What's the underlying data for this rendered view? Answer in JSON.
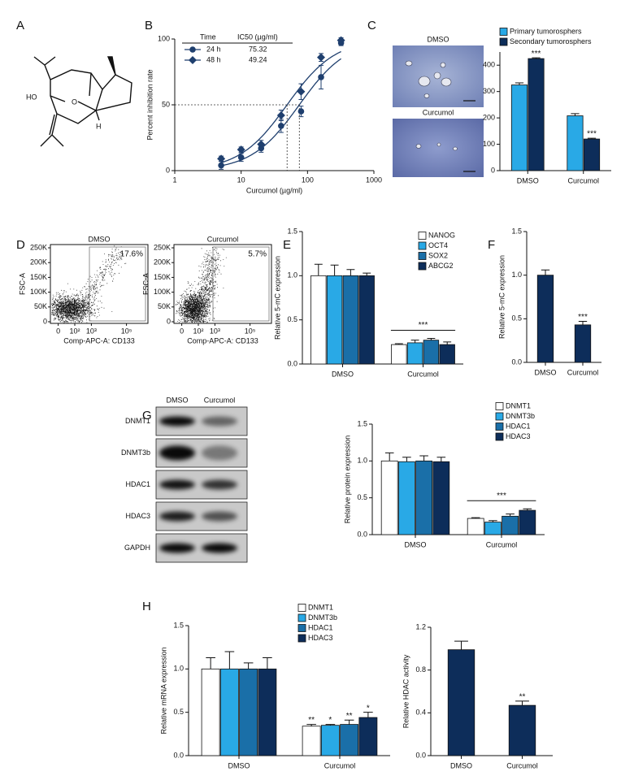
{
  "panel_labels": [
    "A",
    "B",
    "C",
    "D",
    "E",
    "F",
    "G",
    "H"
  ],
  "structure": {
    "labels": [
      "HO",
      "O",
      "H"
    ]
  },
  "micrographs": {
    "labels": [
      "DMSO",
      "Curcumol"
    ]
  },
  "flow_cytometry": {
    "x_label": "Comp-APC-A: CD133",
    "y_label": "FSC-A",
    "y_ticks": [
      "0",
      "50K",
      "100K",
      "150K",
      "200K",
      "250K"
    ],
    "x_ticks": [
      "0",
      "10²",
      "10³",
      "10⁵"
    ],
    "plots": [
      {
        "title": "DMSO",
        "gate": "17.6%"
      },
      {
        "title": "Curcumol",
        "gate": "5.7%"
      }
    ]
  },
  "western_blot": {
    "columns": [
      "DMSO",
      "Curcumol"
    ],
    "rows": [
      "DNMT1",
      "DNMT3b",
      "HDAC1",
      "HDAC3",
      "GAPDH"
    ]
  },
  "chart_data": [
    {
      "type": "line",
      "xlabel": "Curcumol (µg/ml)",
      "ylabel": "Percent inhibition rate",
      "xscale": "log",
      "xlim": [
        1,
        1000
      ],
      "xticks": [
        1,
        10,
        100,
        1000
      ],
      "ylim": [
        0,
        100
      ],
      "yticks": [
        0,
        50,
        100
      ],
      "legend_header": [
        "Time",
        "IC50 (µg/ml)"
      ],
      "color": "#1f3f6e",
      "series": [
        {
          "name": "24 h",
          "marker": "circle",
          "ic50": 75.32,
          "x": [
            5,
            10,
            20,
            40,
            80,
            160,
            320
          ],
          "values": [
            4,
            10,
            17,
            34,
            45,
            71,
            97
          ],
          "errors": [
            3,
            3,
            3,
            5,
            4,
            9,
            2
          ]
        },
        {
          "name": "48 h",
          "marker": "diamond",
          "ic50": 49.24,
          "x": [
            5,
            10,
            20,
            40,
            80,
            160,
            320
          ],
          "values": [
            9,
            16,
            20,
            42,
            60,
            86,
            99
          ],
          "errors": [
            2,
            2,
            3,
            4,
            6,
            3,
            2
          ]
        }
      ]
    },
    {
      "type": "bar",
      "categories": [
        "DMSO",
        "Curcumol"
      ],
      "ylim": [
        0,
        450
      ],
      "yticks": [
        0,
        100,
        200,
        300,
        400
      ],
      "series": [
        {
          "name": "Primary tumorosphers",
          "color": "#29a9e6",
          "values": [
            325,
            208
          ],
          "errors": [
            8,
            8
          ]
        },
        {
          "name": "Secondary tumorosphers",
          "color": "#0d2d5a",
          "values": [
            425,
            120
          ],
          "errors": [
            3,
            3
          ],
          "significance": [
            "***",
            "***"
          ]
        }
      ]
    },
    {
      "type": "bar",
      "ylabel": "Relative 5-mC expression",
      "categories": [
        "DMSO",
        "Curcumol"
      ],
      "ylim": [
        0,
        1.5
      ],
      "yticks": [
        {
          "value": 0,
          "label": "0.0"
        },
        0.5,
        {
          "value": 1,
          "label": "1.0"
        },
        1.5
      ],
      "annotation": "***",
      "series": [
        {
          "name": "NANOG",
          "color": "#ffffff",
          "values": [
            1.0,
            0.22
          ],
          "errors": [
            0.13,
            0.01
          ]
        },
        {
          "name": "OCT4",
          "color": "#29a9e6",
          "values": [
            1.0,
            0.24
          ],
          "errors": [
            0.12,
            0.03
          ]
        },
        {
          "name": "SOX2",
          "color": "#1a6fa8",
          "values": [
            1.0,
            0.27
          ],
          "errors": [
            0.07,
            0.02
          ]
        },
        {
          "name": "ABCG2",
          "color": "#0d2d5a",
          "values": [
            1.0,
            0.22
          ],
          "errors": [
            0.03,
            0.03
          ]
        }
      ]
    },
    {
      "type": "bar",
      "ylabel": "Relative 5-mC expression",
      "categories": [
        "DMSO",
        "Curcumol"
      ],
      "ylim": [
        0,
        1.5
      ],
      "yticks": [
        {
          "value": 0,
          "label": "0.0"
        },
        0.5,
        {
          "value": 1,
          "label": "1.0"
        },
        1.5
      ],
      "color": "#0d2d5a",
      "values": [
        1.0,
        0.43
      ],
      "errors": [
        0.06,
        0.04
      ],
      "significance": [
        null,
        "***"
      ]
    },
    {
      "type": "bar",
      "ylabel": "Relative protein expression",
      "categories": [
        "DMSO",
        "Curcumol"
      ],
      "ylim": [
        0,
        1.5
      ],
      "yticks": [
        {
          "value": 0,
          "label": "0.0"
        },
        0.5,
        {
          "value": 1,
          "label": "1.0"
        },
        1.5
      ],
      "annotation": "***",
      "series": [
        {
          "name": "DNMT1",
          "color": "#ffffff",
          "values": [
            1.0,
            0.22
          ],
          "errors": [
            0.11,
            0.01
          ]
        },
        {
          "name": "DNMT3b",
          "color": "#29a9e6",
          "values": [
            0.99,
            0.17
          ],
          "errors": [
            0.06,
            0.02
          ]
        },
        {
          "name": "HDAC1",
          "color": "#1a6fa8",
          "values": [
            1.0,
            0.25
          ],
          "errors": [
            0.07,
            0.03
          ]
        },
        {
          "name": "HDAC3",
          "color": "#0d2d5a",
          "values": [
            0.99,
            0.33
          ],
          "errors": [
            0.06,
            0.02
          ]
        }
      ]
    },
    {
      "type": "bar",
      "ylabel": "Relative mRNA expression",
      "categories": [
        "DMSO",
        "Curcumol"
      ],
      "ylim": [
        0,
        1.5
      ],
      "yticks": [
        {
          "value": 0,
          "label": "0.0"
        },
        0.5,
        {
          "value": 1,
          "label": "1.0"
        },
        1.5
      ],
      "series": [
        {
          "name": "DNMT1",
          "color": "#ffffff",
          "values": [
            1.0,
            0.34
          ],
          "errors": [
            0.13,
            0.02
          ],
          "significance": [
            null,
            "**"
          ]
        },
        {
          "name": "DNMT3b",
          "color": "#29a9e6",
          "values": [
            1.0,
            0.35
          ],
          "errors": [
            0.2,
            0.01
          ],
          "significance": [
            null,
            "*"
          ]
        },
        {
          "name": "HDAC1",
          "color": "#1a6fa8",
          "values": [
            1.0,
            0.36
          ],
          "errors": [
            0.07,
            0.05
          ],
          "significance": [
            null,
            "**"
          ]
        },
        {
          "name": "HDAC3",
          "color": "#0d2d5a",
          "values": [
            1.0,
            0.44
          ],
          "errors": [
            0.13,
            0.06
          ],
          "significance": [
            null,
            "*"
          ]
        }
      ]
    },
    {
      "type": "bar",
      "ylabel": "Relative HDAC activity",
      "categories": [
        "DMSO",
        "Curcumol"
      ],
      "ylim": [
        0,
        1.2
      ],
      "yticks": [
        {
          "value": 0,
          "label": "0.0"
        },
        0.4,
        0.8,
        1.2
      ],
      "color": "#0d2d5a",
      "values": [
        0.99,
        0.47
      ],
      "errors": [
        0.08,
        0.04
      ],
      "significance": [
        null,
        "**"
      ]
    }
  ]
}
